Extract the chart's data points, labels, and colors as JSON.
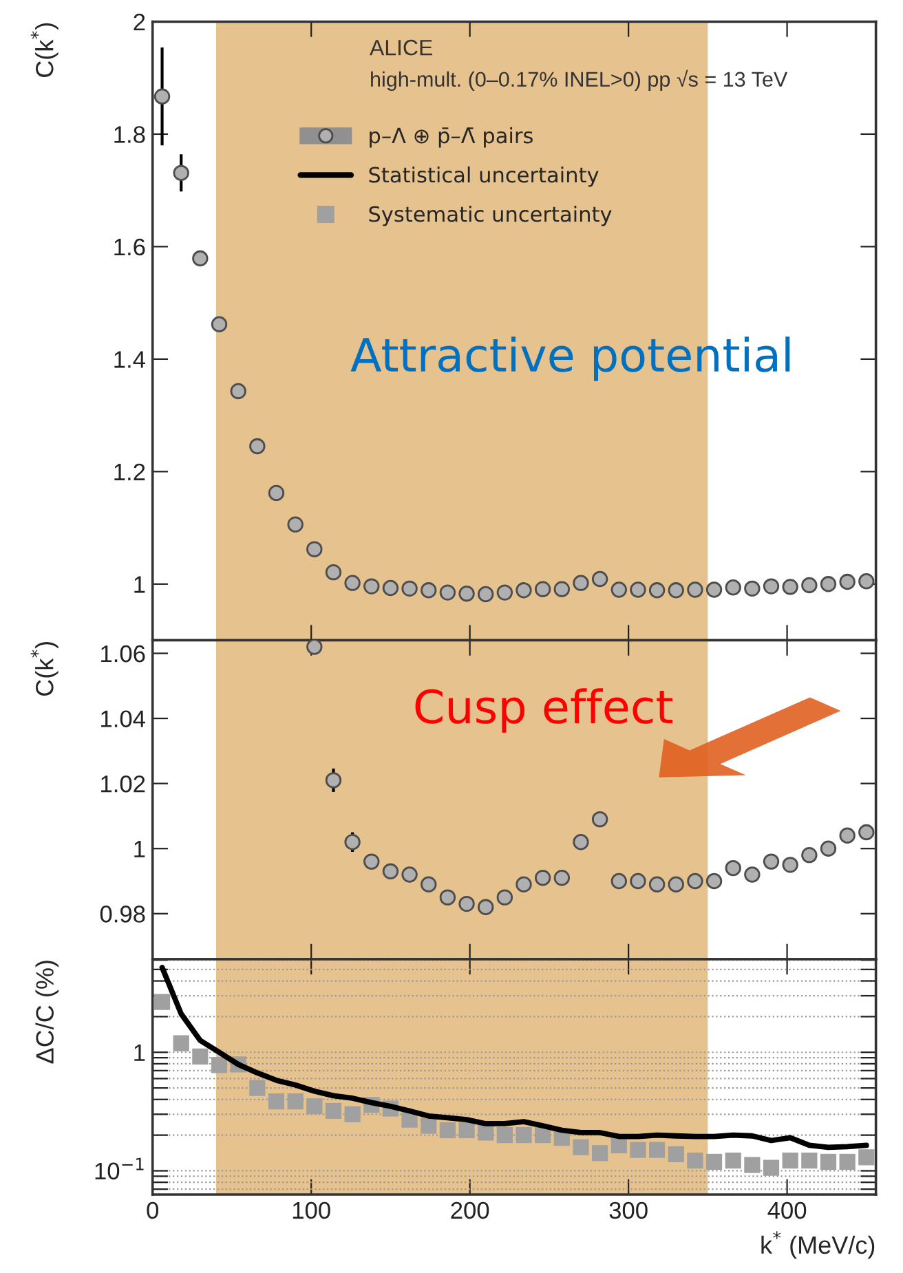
{
  "chart_data": [
    {
      "type": "scatter",
      "ylabel": "C(k$^{*}$)",
      "xlim": [
        0,
        456
      ],
      "xticks": [
        0,
        100,
        200,
        300,
        400
      ],
      "ylim": [
        0.9,
        2
      ],
      "yticks": [
        1,
        1.2,
        1.4,
        1.6,
        1.8,
        2
      ],
      "tick_labels": "y",
      "legend": "top",
      "marker": "circle",
      "annotations": [
        "ALICE",
        "high-mult. (0–0.17% INEL>0) pp √s = 13 TeV",
        "Attractive potential"
      ],
      "bands": [
        {
          "axis": "x",
          "from": 40,
          "to": 350,
          "color": "#e6c28e"
        }
      ],
      "x": [
        6,
        18,
        30,
        42,
        54,
        66,
        78,
        90,
        102,
        114,
        126,
        138,
        150,
        162,
        174,
        186,
        198,
        210,
        222,
        234,
        246,
        258,
        270,
        282,
        294,
        306,
        318,
        330,
        342,
        354,
        366,
        378,
        390,
        402,
        414,
        426,
        438,
        450
      ],
      "series": [
        {
          "name": "p–Λ ⊕ p̄–Λ̄ pairs",
          "color": "#4d4d4d",
          "values": [
            1.867,
            1.731,
            1.579,
            1.462,
            1.343,
            1.245,
            1.162,
            1.106,
            1.062,
            1.021,
            1.002,
            0.996,
            0.993,
            0.992,
            0.989,
            0.985,
            0.983,
            0.982,
            0.985,
            0.989,
            0.991,
            0.991,
            1.002,
            1.009,
            0.99,
            0.99,
            0.989,
            0.989,
            0.99,
            0.99,
            0.994,
            0.992,
            0.996,
            0.995,
            0.998,
            1.0,
            1.004,
            1.005
          ],
          "errors": [
            0.087,
            0.033,
            null,
            null,
            null,
            null,
            null,
            null,
            null,
            null,
            null,
            null,
            null,
            null,
            null,
            null,
            null,
            null,
            null,
            null,
            null,
            null,
            null,
            null,
            null,
            null,
            null,
            null,
            null,
            null,
            null,
            null,
            null,
            null,
            null,
            null,
            null,
            null
          ]
        }
      ]
    },
    {
      "type": "scatter",
      "ylabel": "C(k$^{*}$)",
      "xlim": [
        0,
        456
      ],
      "xticks": [
        0,
        100,
        200,
        300,
        400
      ],
      "ylim": [
        0.966,
        1.064
      ],
      "yticks": [
        0.98,
        1,
        1.02,
        1.04,
        1.06
      ],
      "tick_labels": "y",
      "marker": "circle",
      "annotations": [
        "Cusp effect"
      ],
      "bands": [
        {
          "axis": "x",
          "from": 40,
          "to": 350,
          "color": "#e6c28e"
        }
      ],
      "x": [
        102,
        114,
        126,
        138,
        150,
        162,
        174,
        186,
        198,
        210,
        222,
        234,
        246,
        258,
        270,
        282,
        294,
        306,
        318,
        330,
        342,
        354,
        366,
        378,
        390,
        402,
        414,
        426,
        438,
        450
      ],
      "series": [
        {
          "color": "#4d4d4d",
          "values": [
            1.062,
            1.021,
            1.002,
            0.996,
            0.993,
            0.992,
            0.989,
            0.985,
            0.983,
            0.982,
            0.985,
            0.989,
            0.991,
            0.991,
            1.002,
            1.009,
            0.99,
            0.99,
            0.989,
            0.989,
            0.99,
            0.99,
            0.994,
            0.992,
            0.996,
            0.995,
            0.998,
            1.0,
            1.004,
            1.005
          ],
          "errors": [
            null,
            0.0036,
            0.003,
            null,
            null,
            null,
            null,
            null,
            null,
            null,
            null,
            null,
            null,
            null,
            null,
            null,
            null,
            null,
            null,
            null,
            null,
            null,
            null,
            null,
            null,
            null,
            null,
            null,
            null,
            null
          ]
        }
      ]
    },
    {
      "type": "line",
      "ylabel": "ΔC/C (%)",
      "xlabel": "k$^{*}$ (MeV/c)",
      "xlim": [
        0,
        456
      ],
      "xticks": [
        0,
        100,
        200,
        300,
        400
      ],
      "log": "y",
      "ylim": [
        0.063,
        6.1
      ],
      "grid": "y",
      "legend": "top",
      "yticks": [
        {
          "value": 0.07,
          "label": null
        },
        {
          "value": 0.08,
          "label": null
        },
        {
          "value": 0.09,
          "label": null
        },
        {
          "value": 0.1,
          "label": "10$^{−1}$"
        },
        {
          "value": 0.2,
          "label": null
        },
        {
          "value": 0.3,
          "label": null
        },
        {
          "value": 0.4,
          "label": null
        },
        {
          "value": 0.5,
          "label": null
        },
        {
          "value": 0.6,
          "label": null
        },
        {
          "value": 0.7,
          "label": null
        },
        {
          "value": 0.8,
          "label": null
        },
        {
          "value": 0.9,
          "label": null
        },
        {
          "value": 1,
          "label": "1"
        },
        {
          "value": 2,
          "label": null
        },
        {
          "value": 3,
          "label": null
        },
        {
          "value": 4,
          "label": null
        },
        {
          "value": 5,
          "label": null
        },
        {
          "value": 6,
          "label": null
        }
      ],
      "bands": [
        {
          "axis": "x",
          "from": 40,
          "to": 350,
          "color": "#e6c28e"
        }
      ],
      "x": [
        6,
        18,
        30,
        42,
        54,
        66,
        78,
        90,
        102,
        114,
        126,
        138,
        150,
        162,
        174,
        186,
        198,
        210,
        222,
        234,
        246,
        258,
        270,
        282,
        294,
        306,
        318,
        330,
        342,
        354,
        366,
        378,
        390,
        402,
        414,
        426,
        438,
        450
      ],
      "series": [
        {
          "name": "Statistical uncertainty",
          "type": "line",
          "marker": "none",
          "color": "#000000",
          "values": [
            5.19,
            2.11,
            1.26,
            1.0,
            0.79,
            0.67,
            0.58,
            0.53,
            0.47,
            0.43,
            0.41,
            0.376,
            0.35,
            0.32,
            0.29,
            0.28,
            0.27,
            0.25,
            0.25,
            0.26,
            0.24,
            0.22,
            0.21,
            0.21,
            0.195,
            0.195,
            0.2,
            0.197,
            0.195,
            0.195,
            0.2,
            0.197,
            0.18,
            0.19,
            0.164,
            0.158,
            0.16,
            0.164
          ]
        },
        {
          "name": "Systematic uncertainty",
          "type": "scatter",
          "marker": "square",
          "color": "#a0a0a0",
          "values": [
            2.66,
            1.19,
            0.92,
            0.78,
            0.79,
            0.5,
            0.385,
            0.385,
            0.35,
            0.32,
            0.3,
            0.36,
            0.335,
            0.27,
            0.24,
            0.22,
            0.22,
            0.21,
            0.2,
            0.2,
            0.2,
            0.19,
            0.158,
            0.141,
            0.164,
            0.15,
            0.15,
            0.138,
            0.122,
            0.119,
            0.122,
            0.112,
            0.106,
            0.122,
            0.122,
            0.119,
            0.119,
            0.13
          ]
        }
      ]
    }
  ]
}
